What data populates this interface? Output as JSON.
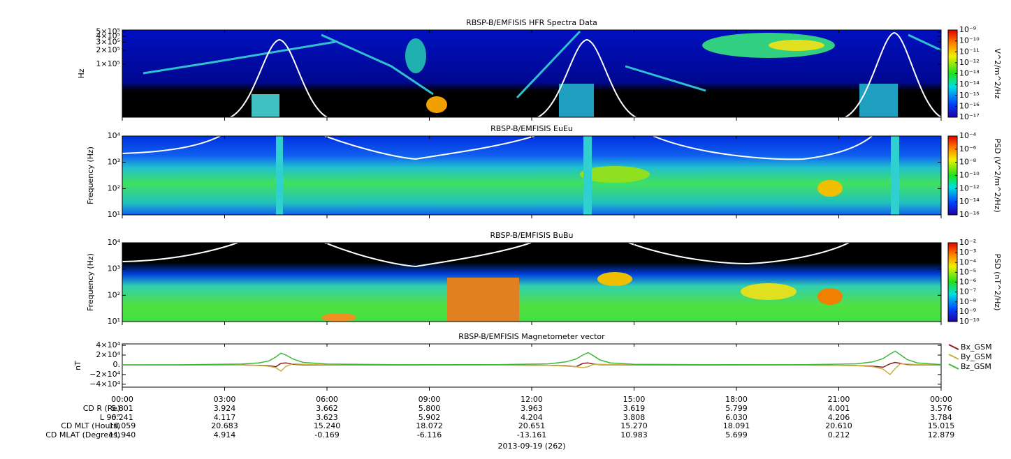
{
  "time_axis": {
    "xlim": [
      0,
      24
    ],
    "xticks": [
      {
        "value": 0,
        "label": "00:00"
      },
      {
        "value": 3,
        "label": "03:00"
      },
      {
        "value": 6,
        "label": "06:00"
      },
      {
        "value": 9,
        "label": "09:00"
      },
      {
        "value": 12,
        "label": "12:00"
      },
      {
        "value": 15,
        "label": "15:00"
      },
      {
        "value": 18,
        "label": "18:00"
      },
      {
        "value": 21,
        "label": "21:00"
      },
      {
        "value": 24,
        "label": "00:00"
      }
    ],
    "date_label": "2013-09-19 (262)"
  },
  "ephemeris": [
    {
      "label": "CD R (Re)",
      "values": [
        "5.801",
        "3.924",
        "3.662",
        "5.800",
        "3.963",
        "3.619",
        "5.799",
        "4.001",
        "3.576"
      ]
    },
    {
      "label": "L 90°",
      "values": [
        "6.241",
        "4.117",
        "3.623",
        "5.902",
        "4.204",
        "3.808",
        "6.030",
        "4.206",
        "3.784"
      ]
    },
    {
      "label": "CD MLT (Hours)",
      "values": [
        "18.059",
        "20.683",
        "15.240",
        "18.072",
        "20.651",
        "15.270",
        "18.091",
        "20.610",
        "15.015"
      ]
    },
    {
      "label": "CD MLAT (Degrees)",
      "values": [
        "11.940",
        "4.914",
        "-0.169",
        "-6.116",
        "-13.161",
        "10.983",
        "5.699",
        "0.212",
        "12.879"
      ]
    }
  ],
  "chart_data": [
    {
      "type": "spectrogram",
      "title": "RBSP-B/EMFISIS  HFR Spectra Data",
      "ylabel": "Hz",
      "yscale": "log",
      "ylim": [
        7000,
        550000
      ],
      "yticks": [
        {
          "value": 500000,
          "label": "5×10⁵"
        },
        {
          "value": 400000,
          "label": "4×10⁵"
        },
        {
          "value": 300000,
          "label": "3×10⁵"
        },
        {
          "value": 200000,
          "label": "2×10⁵"
        },
        {
          "value": 100000,
          "label": "1×10⁵"
        }
      ],
      "colorbar": {
        "label": "V^2/m^2/Hz",
        "scale": "log",
        "zlim": [
          1e-17,
          1e-09
        ],
        "zticks": [
          {
            "value": 1e-09,
            "label": "10⁻⁹"
          },
          {
            "value": 1e-10,
            "label": "10⁻¹⁰"
          },
          {
            "value": 1e-11,
            "label": "10⁻¹¹"
          },
          {
            "value": 1e-12,
            "label": "10⁻¹²"
          },
          {
            "value": 1e-13,
            "label": "10⁻¹³"
          },
          {
            "value": 1e-14,
            "label": "10⁻¹⁴"
          },
          {
            "value": 1e-15,
            "label": "10⁻¹⁵"
          },
          {
            "value": 1e-16,
            "label": "10⁻¹⁶"
          },
          {
            "value": 1e-17,
            "label": "10⁻¹⁷"
          }
        ]
      }
    },
    {
      "type": "spectrogram",
      "title": "RBSP-B/EMFISIS  EuEu",
      "ylabel": "Frequency (Hz)",
      "yscale": "log",
      "ylim": [
        10,
        10000
      ],
      "yticks": [
        {
          "value": 10000,
          "label": "10⁴"
        },
        {
          "value": 1000,
          "label": "10³"
        },
        {
          "value": 100,
          "label": "10²"
        },
        {
          "value": 10,
          "label": "10¹"
        }
      ],
      "colorbar": {
        "label": "PSD (V^2/m^2/Hz)",
        "scale": "log",
        "zlim": [
          1e-16,
          0.0001
        ],
        "zticks": [
          {
            "value": 0.0001,
            "label": "10⁻⁴"
          },
          {
            "value": 1e-06,
            "label": "10⁻⁶"
          },
          {
            "value": 1e-08,
            "label": "10⁻⁸"
          },
          {
            "value": 1e-10,
            "label": "10⁻¹⁰"
          },
          {
            "value": 1e-12,
            "label": "10⁻¹²"
          },
          {
            "value": 1e-14,
            "label": "10⁻¹⁴"
          },
          {
            "value": 1e-16,
            "label": "10⁻¹⁶"
          }
        ]
      }
    },
    {
      "type": "spectrogram",
      "title": "RBSP-B/EMFISIS  BuBu",
      "ylabel": "Frequency (Hz)",
      "yscale": "log",
      "ylim": [
        10,
        10000
      ],
      "yticks": [
        {
          "value": 10000,
          "label": "10⁴"
        },
        {
          "value": 1000,
          "label": "10³"
        },
        {
          "value": 100,
          "label": "10²"
        },
        {
          "value": 10,
          "label": "10¹"
        }
      ],
      "colorbar": {
        "label": "PSD (nT^2/Hz)",
        "scale": "log",
        "zlim": [
          1e-10,
          0.01
        ],
        "zticks": [
          {
            "value": 0.01,
            "label": "10⁻²"
          },
          {
            "value": 0.001,
            "label": "10⁻³"
          },
          {
            "value": 0.0001,
            "label": "10⁻⁴"
          },
          {
            "value": 1e-05,
            "label": "10⁻⁵"
          },
          {
            "value": 1e-06,
            "label": "10⁻⁶"
          },
          {
            "value": 1e-07,
            "label": "10⁻⁷"
          },
          {
            "value": 1e-08,
            "label": "10⁻⁸"
          },
          {
            "value": 1e-09,
            "label": "10⁻⁹"
          },
          {
            "value": 1e-10,
            "label": "10⁻¹⁰"
          }
        ]
      }
    },
    {
      "type": "line",
      "title": "RBSP-B/EMFISIS  Magnetometer vector",
      "ylabel": "nT",
      "ylim": [
        -46000,
        43000
      ],
      "yticks": [
        {
          "value": 40000,
          "label": "4×10⁴"
        },
        {
          "value": 20000,
          "label": "2×10⁴"
        },
        {
          "value": 0,
          "label": "0."
        },
        {
          "value": -20000,
          "label": "−2×10⁴"
        },
        {
          "value": -40000,
          "label": "−4×10⁴"
        }
      ],
      "legend": "right",
      "x": [
        0,
        2,
        3.5,
        4.0,
        4.3,
        4.5,
        4.65,
        4.8,
        5.0,
        5.3,
        6,
        8,
        11,
        12.5,
        13.0,
        13.3,
        13.5,
        13.65,
        13.8,
        14.0,
        14.3,
        15,
        17,
        20,
        21.5,
        22.0,
        22.3,
        22.5,
        22.65,
        22.8,
        23.0,
        23.3,
        24
      ],
      "series": [
        {
          "name": "Bx_GSM",
          "color": "#8b1a1a",
          "values": [
            -500,
            -400,
            -500,
            -1000,
            -2000,
            -4000,
            3000,
            4000,
            1000,
            0,
            -300,
            -300,
            -500,
            -1000,
            -2000,
            -4000,
            3000,
            4000,
            1500,
            300,
            0,
            -300,
            -300,
            -600,
            -1500,
            -3000,
            -5000,
            2000,
            5000,
            3000,
            500,
            0,
            -500
          ]
        },
        {
          "name": "By_GSM",
          "color": "#c8b040",
          "values": [
            -200,
            -200,
            -500,
            -1500,
            -3000,
            -6000,
            -13000,
            -3000,
            2000,
            1000,
            0,
            0,
            -300,
            -1000,
            -2500,
            -4000,
            -6000,
            -4000,
            500,
            1000,
            300,
            0,
            0,
            -500,
            -1500,
            -4000,
            -9000,
            -20000,
            -8000,
            2000,
            1500,
            500,
            0
          ]
        },
        {
          "name": "Bz_GSM",
          "color": "#3cb83c",
          "values": [
            0,
            200,
            1500,
            4000,
            8000,
            16000,
            24000,
            20000,
            12000,
            5000,
            1500,
            200,
            300,
            2000,
            6000,
            12000,
            20000,
            25000,
            19000,
            10000,
            4000,
            1000,
            200,
            300,
            2000,
            6000,
            13000,
            22000,
            28000,
            21000,
            11000,
            4000,
            500
          ]
        }
      ]
    }
  ]
}
